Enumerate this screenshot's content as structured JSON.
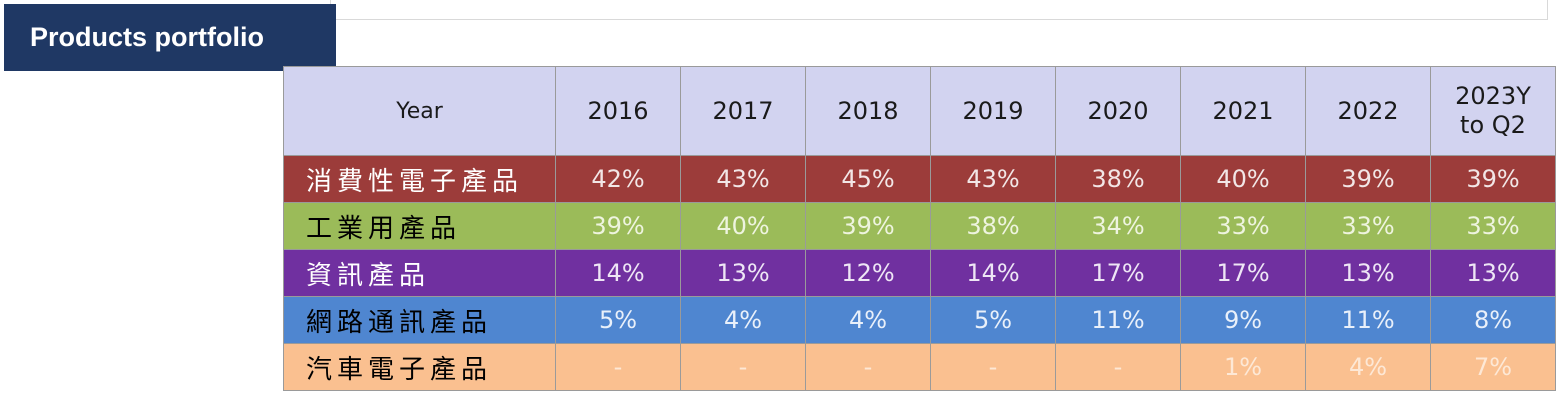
{
  "title": "Products portfolio",
  "table": {
    "header_label": "Year",
    "years": [
      "2016",
      "2017",
      "2018",
      "2019",
      "2020",
      "2021",
      "2022"
    ],
    "last_year": [
      "2023Y",
      "to Q2"
    ],
    "rows": [
      {
        "label": "消費性電子產品",
        "color": "#9c3c3a",
        "values": [
          "42%",
          "43%",
          "45%",
          "43%",
          "38%",
          "40%",
          "39%",
          "39%"
        ]
      },
      {
        "label": "工業用產品",
        "color": "#9bbb59",
        "values": [
          "39%",
          "40%",
          "39%",
          "38%",
          "34%",
          "33%",
          "33%",
          "33%"
        ]
      },
      {
        "label": "資訊產品",
        "color": "#7030a0",
        "values": [
          "14%",
          "13%",
          "12%",
          "14%",
          "17%",
          "17%",
          "13%",
          "13%"
        ]
      },
      {
        "label": "網路通訊產品",
        "color": "#4f86d0",
        "values": [
          "5%",
          "4%",
          "4%",
          "5%",
          "11%",
          "9%",
          "11%",
          "8%"
        ]
      },
      {
        "label": "汽車電子產品",
        "color": "#fac090",
        "values": [
          "-",
          "-",
          "-",
          "-",
          "-",
          "1%",
          "4%",
          "7%"
        ]
      }
    ]
  }
}
